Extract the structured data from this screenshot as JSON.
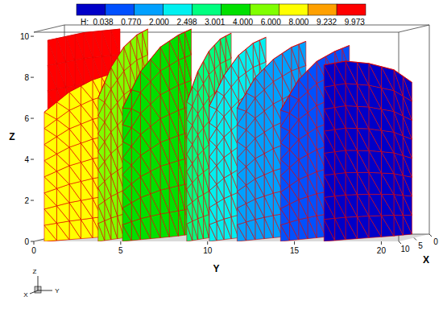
{
  "chart_data": {
    "type": "surface3d",
    "x_label": "X",
    "y_label": "Y",
    "z_label": "Z",
    "grid": false,
    "xlim": [
      0,
      10
    ],
    "ylim": [
      0,
      21
    ],
    "zlim": [
      0,
      10.2
    ],
    "xticks": [
      0,
      5,
      10
    ],
    "yticks": [
      0,
      5,
      10,
      15,
      20
    ],
    "zticks": [
      0,
      2,
      4,
      6,
      8,
      10
    ],
    "colorbar": {
      "label": "H:",
      "colors": [
        "#0000c8",
        "#0050ff",
        "#00a0ff",
        "#00f0f0",
        "#00ff80",
        "#00e000",
        "#80ff00",
        "#ffff00",
        "#ffa000",
        "#ff0000"
      ],
      "ticks": [
        0.038,
        {
          "value": 0.77,
          "label": "0.770"
        },
        {
          "value": 2,
          "label": "2.000"
        },
        2.498,
        3.001,
        {
          "value": 4,
          "label": "4.000"
        },
        {
          "value": 6,
          "label": "6.000"
        },
        {
          "value": 8,
          "label": "8.000"
        },
        9.232,
        9.973
      ]
    },
    "x": [
      0,
      2.5,
      5,
      7.5,
      10
    ],
    "surfaces": [
      {
        "H": 9.973,
        "y": [
          3.2,
          2.6,
          2.0,
          1.4,
          0.8
        ],
        "z": [
          10.0,
          10.0,
          10.0,
          9.9,
          9.8
        ]
      },
      {
        "H": 8,
        "y": [
          3.4,
          3.1,
          2.5,
          1.6,
          0.6
        ],
        "z": [
          8.0,
          7.9,
          7.7,
          7.2,
          6.3
        ]
      },
      {
        "H": 6,
        "y": [
          4.8,
          4.6,
          4.3,
          4.0,
          3.7
        ],
        "z": [
          10.0,
          9.8,
          9.3,
          8.4,
          7.0
        ]
      },
      {
        "H": 4,
        "y": [
          7.3,
          7.0,
          6.4,
          5.7,
          5.1
        ],
        "z": [
          10.0,
          9.8,
          9.3,
          8.2,
          6.5
        ]
      },
      {
        "H": 3.001,
        "y": [
          9.6,
          9.4,
          9.2,
          9.0,
          8.8
        ],
        "z": [
          9.8,
          9.6,
          9.1,
          8.2,
          6.8
        ]
      },
      {
        "H": 2.498,
        "y": [
          11.6,
          11.3,
          10.9,
          10.5,
          10.1
        ],
        "z": [
          9.6,
          9.4,
          8.9,
          8.0,
          6.6
        ]
      },
      {
        "H": 2,
        "y": [
          13.9,
          13.5,
          12.9,
          12.3,
          11.7
        ],
        "z": [
          9.4,
          9.2,
          8.7,
          7.9,
          6.5
        ]
      },
      {
        "H": 0.77,
        "y": [
          16.4,
          16.0,
          15.4,
          14.8,
          14.2
        ],
        "z": [
          9.2,
          9.0,
          8.6,
          7.8,
          6.4
        ]
      },
      {
        "H": 0.038,
        "y": [
          20.0,
          19.4,
          18.4,
          17.5,
          16.7
        ],
        "z": [
          7.4,
          8.1,
          8.5,
          8.7,
          8.6
        ]
      }
    ],
    "triad": [
      "X",
      "Y",
      "Z"
    ]
  }
}
